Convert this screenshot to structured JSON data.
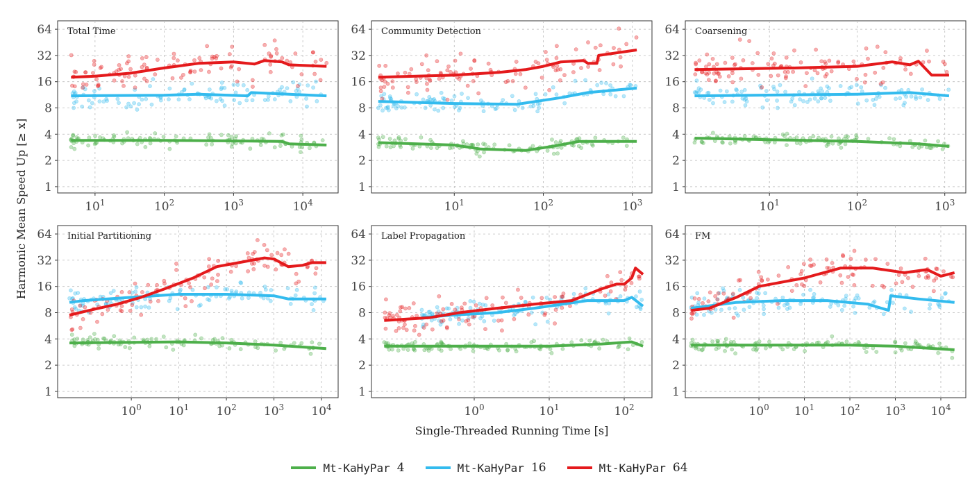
{
  "chart_data": [
    {
      "type": "line",
      "title": "Total Time",
      "x_scale": "log10",
      "y_scale": "log2",
      "xlim_log10": [
        0.46,
        4.51
      ],
      "x_ticks": [
        "10^1",
        "10^2",
        "10^3",
        "10^4"
      ],
      "x_tick_values": [
        10,
        100,
        1000,
        10000
      ],
      "series": [
        {
          "name": "Mt-KaHyPar 4",
          "points": [
            [
              4.5,
              3.4
            ],
            [
              100,
              3.4
            ],
            [
              1000,
              3.35
            ],
            [
              5000,
              3.3
            ],
            [
              6300,
              3.1
            ],
            [
              22000,
              3.0
            ]
          ]
        },
        {
          "name": "Mt-KaHyPar 16",
          "points": [
            [
              4.5,
              11
            ],
            [
              100,
              11.2
            ],
            [
              316,
              11.5
            ],
            [
              1600,
              11
            ],
            [
              1800,
              12
            ],
            [
              6300,
              11.5
            ],
            [
              22000,
              11
            ]
          ]
        },
        {
          "name": "Mt-KaHyPar 64",
          "points": [
            [
              4.5,
              18
            ],
            [
              10,
              18.5
            ],
            [
              32,
              20
            ],
            [
              100,
              23
            ],
            [
              316,
              26
            ],
            [
              1000,
              27
            ],
            [
              2000,
              25.5
            ],
            [
              2800,
              28
            ],
            [
              5000,
              27
            ],
            [
              6300,
              25
            ],
            [
              22000,
              24
            ]
          ]
        }
      ]
    },
    {
      "type": "line",
      "title": "Community Detection",
      "x_scale": "log10",
      "y_scale": "log2",
      "xlim_log10": [
        0.07,
        3.22
      ],
      "x_ticks": [
        "10^1",
        "10^2",
        "10^3"
      ],
      "x_tick_values": [
        10,
        100,
        1000
      ],
      "series": [
        {
          "name": "Mt-KaHyPar 4",
          "points": [
            [
              1.4,
              3.2
            ],
            [
              10,
              3.0
            ],
            [
              20,
              2.7
            ],
            [
              63,
              2.6
            ],
            [
              126,
              2.9
            ],
            [
              251,
              3.3
            ],
            [
              1120,
              3.3
            ]
          ]
        },
        {
          "name": "Mt-KaHyPar 16",
          "points": [
            [
              1.4,
              9.5
            ],
            [
              10,
              9.0
            ],
            [
              50,
              8.8
            ],
            [
              158,
              10.5
            ],
            [
              316,
              12
            ],
            [
              1120,
              13.5
            ]
          ]
        },
        {
          "name": "Mt-KaHyPar 64",
          "points": [
            [
              1.4,
              18
            ],
            [
              10,
              19
            ],
            [
              32,
              20.5
            ],
            [
              63,
              22
            ],
            [
              100,
              24
            ],
            [
              158,
              27
            ],
            [
              282,
              28
            ],
            [
              316,
              26
            ],
            [
              400,
              26
            ],
            [
              417,
              32
            ],
            [
              1120,
              37
            ]
          ]
        }
      ]
    },
    {
      "type": "line",
      "title": "Coarsening",
      "x_scale": "log10",
      "y_scale": "log2",
      "xlim_log10": [
        0.04,
        3.24
      ],
      "x_ticks": [
        "10^1",
        "10^2",
        "10^3"
      ],
      "x_tick_values": [
        10,
        100,
        1000
      ],
      "series": [
        {
          "name": "Mt-KaHyPar 4",
          "points": [
            [
              1.4,
              3.6
            ],
            [
              100,
              3.3
            ],
            [
              500,
              3.1
            ],
            [
              1120,
              2.9
            ]
          ]
        },
        {
          "name": "Mt-KaHyPar 16",
          "points": [
            [
              1.4,
              11
            ],
            [
              100,
              11.5
            ],
            [
              400,
              12
            ],
            [
              1120,
              11
            ]
          ]
        },
        {
          "name": "Mt-KaHyPar 64",
          "points": [
            [
              1.4,
              22
            ],
            [
              20,
              23
            ],
            [
              100,
              24
            ],
            [
              251,
              27
            ],
            [
              400,
              25
            ],
            [
              500,
              27.5
            ],
            [
              708,
              19
            ],
            [
              1120,
              19
            ]
          ]
        }
      ]
    },
    {
      "type": "line",
      "title": "Initial Partitioning",
      "x_scale": "log10",
      "y_scale": "log2",
      "xlim_log10": [
        -1.55,
        4.35
      ],
      "x_ticks": [
        "10^0",
        "10^1",
        "10^2",
        "10^3",
        "10^4"
      ],
      "x_tick_values": [
        1,
        10,
        100,
        1000,
        10000
      ],
      "series": [
        {
          "name": "Mt-KaHyPar 4",
          "points": [
            [
              0.05,
              3.6
            ],
            [
              10,
              3.7
            ],
            [
              100,
              3.6
            ],
            [
              1000,
              3.4
            ],
            [
              12600,
              3.1
            ]
          ]
        },
        {
          "name": "Mt-KaHyPar 16",
          "points": [
            [
              0.05,
              10.5
            ],
            [
              0.1,
              11
            ],
            [
              1,
              12
            ],
            [
              10,
              13
            ],
            [
              100,
              13
            ],
            [
              1000,
              12.5
            ],
            [
              2000,
              11.5
            ],
            [
              12600,
              11.5
            ]
          ]
        },
        {
          "name": "Mt-KaHyPar 64",
          "points": [
            [
              0.05,
              7.5
            ],
            [
              0.13,
              8.5
            ],
            [
              0.5,
              10
            ],
            [
              1.6,
              12
            ],
            [
              5,
              15
            ],
            [
              20,
              20
            ],
            [
              63,
              27
            ],
            [
              251,
              31
            ],
            [
              631,
              34
            ],
            [
              1000,
              33
            ],
            [
              2000,
              27
            ],
            [
              4000,
              28
            ],
            [
              6300,
              30
            ],
            [
              12600,
              30
            ]
          ]
        }
      ]
    },
    {
      "type": "line",
      "title": "Label Propagation",
      "x_scale": "log10",
      "y_scale": "log2",
      "xlim_log10": [
        -1.37,
        2.37
      ],
      "x_ticks": [
        "10^0",
        "10^1",
        "10^2"
      ],
      "x_tick_values": [
        1,
        10,
        100
      ],
      "series": [
        {
          "name": "Mt-KaHyPar 4",
          "points": [
            [
              0.063,
              3.3
            ],
            [
              10,
              3.3
            ],
            [
              50,
              3.5
            ],
            [
              126,
              3.7
            ],
            [
              178,
              3.3
            ]
          ]
        },
        {
          "name": "Mt-KaHyPar 16",
          "points": [
            [
              0.2,
              7
            ],
            [
              0.5,
              7.5
            ],
            [
              2,
              8
            ],
            [
              6.3,
              9
            ],
            [
              32,
              11
            ],
            [
              100,
              11
            ],
            [
              126,
              12
            ],
            [
              178,
              9.5
            ]
          ]
        },
        {
          "name": "Mt-KaHyPar 64",
          "points": [
            [
              0.063,
              6.5
            ],
            [
              0.25,
              7
            ],
            [
              0.63,
              8
            ],
            [
              2,
              9
            ],
            [
              6.3,
              10
            ],
            [
              20,
              11
            ],
            [
              50,
              15
            ],
            [
              79,
              17
            ],
            [
              100,
              17
            ],
            [
              126,
              20
            ],
            [
              141,
              26
            ],
            [
              178,
              22
            ]
          ]
        }
      ]
    },
    {
      "type": "line",
      "title": "FM",
      "x_scale": "log10",
      "y_scale": "log2",
      "xlim_log10": [
        -1.62,
        4.55
      ],
      "x_ticks": [
        "10^0",
        "10^1",
        "10^2",
        "10^3",
        "10^4"
      ],
      "x_tick_values": [
        1,
        10,
        100,
        1000,
        10000
      ],
      "series": [
        {
          "name": "Mt-KaHyPar 4",
          "points": [
            [
              0.032,
              3.4
            ],
            [
              100,
              3.4
            ],
            [
              1000,
              3.3
            ],
            [
              20000,
              3.0
            ]
          ]
        },
        {
          "name": "Mt-KaHyPar 16",
          "points": [
            [
              0.032,
              9
            ],
            [
              0.32,
              10.5
            ],
            [
              3.2,
              11
            ],
            [
              32,
              11
            ],
            [
              251,
              10
            ],
            [
              708,
              8.5
            ],
            [
              794,
              12.5
            ],
            [
              3160,
              11.5
            ],
            [
              20000,
              10.5
            ]
          ]
        },
        {
          "name": "Mt-KaHyPar 64",
          "points": [
            [
              0.032,
              8.5
            ],
            [
              0.08,
              9
            ],
            [
              0.32,
              12
            ],
            [
              1,
              16
            ],
            [
              10,
              20
            ],
            [
              63,
              26
            ],
            [
              316,
              26
            ],
            [
              1580,
              23
            ],
            [
              5000,
              25
            ],
            [
              10000,
              21
            ],
            [
              20000,
              23
            ]
          ]
        }
      ]
    }
  ],
  "y_ticks": [
    1,
    2,
    4,
    8,
    16,
    32,
    64
  ],
  "ylabel": "Harmonic Mean Speed Up [≥ x]",
  "xlabel": "Single-Threaded Running Time [s]",
  "colors": {
    "Mt-KaHyPar 4": "#4daf4a",
    "Mt-KaHyPar 16": "#33bbee",
    "Mt-KaHyPar 64": "#e41a1c"
  },
  "legend": {
    "position": "bottom",
    "items": [
      {
        "prefix": "Mt-KaHyPar",
        "suffix": "4"
      },
      {
        "prefix": "Mt-KaHyPar",
        "suffix": "16"
      },
      {
        "prefix": "Mt-KaHyPar",
        "suffix": "64"
      }
    ]
  }
}
